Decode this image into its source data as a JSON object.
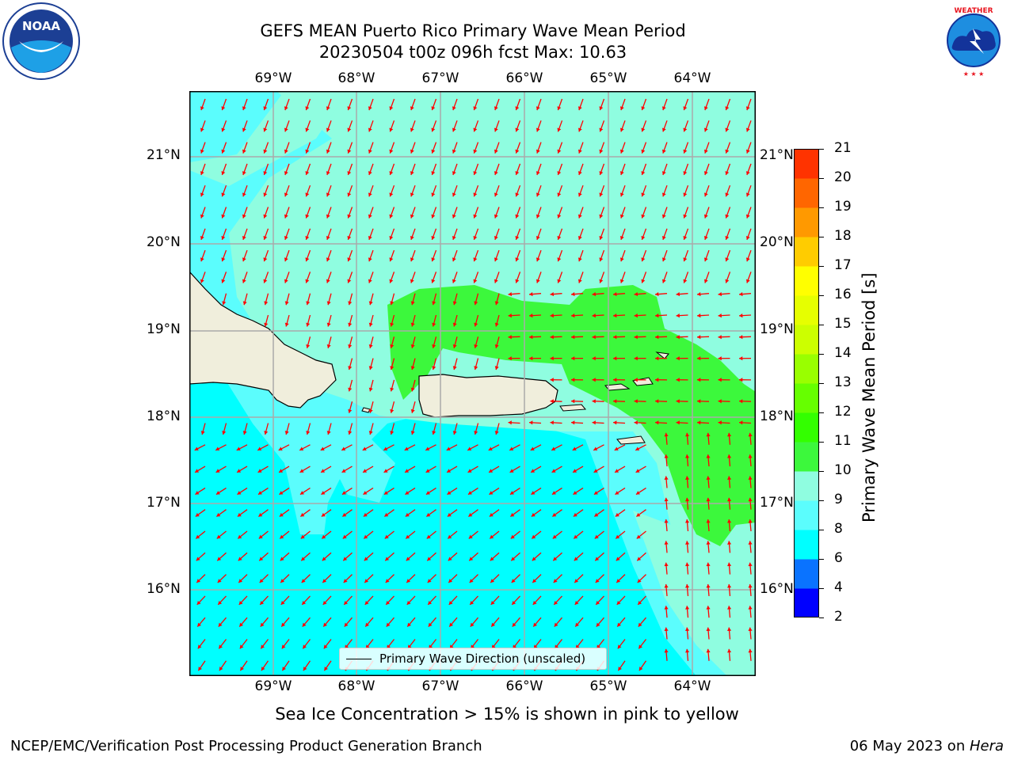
{
  "title_line1": "GEFS MEAN Puerto Rico Primary Wave Mean Period",
  "title_line2": "20230504 t00z 096h fcst   Max: 10.63",
  "longitude_labels": [
    "69°W",
    "68°W",
    "67°W",
    "66°W",
    "65°W",
    "64°W"
  ],
  "latitude_labels_left": [
    "21°N",
    "20°N",
    "19°N",
    "18°N",
    "17°N",
    "16°N"
  ],
  "latitude_labels_right": [
    "21°N",
    "20°N",
    "19°N",
    "18°N",
    "17°N",
    "16°N"
  ],
  "legend_label": "Primary Wave Direction (unscaled)",
  "colorbar": {
    "label": "Primary Wave Mean Period [s]",
    "ticks": [
      "2",
      "4",
      "6",
      "8",
      "9",
      "10",
      "11",
      "12",
      "13",
      "14",
      "15",
      "16",
      "17",
      "18",
      "19",
      "20",
      "21"
    ],
    "colors": [
      "#0000ff",
      "#0a73ff",
      "#00ffff",
      "#5bfdfd",
      "#8ffde0",
      "#3cf83c",
      "#33ff00",
      "#66ff00",
      "#99ff00",
      "#ccff00",
      "#e6ff00",
      "#ffff00",
      "#ffcc00",
      "#ff9900",
      "#ff6600",
      "#ff3300",
      "#ff0000"
    ]
  },
  "note": "Sea Ice Concentration > 15% is shown in pink to yellow",
  "footer_left": "NCEP/EMC/Verification Post Processing Product Generation Branch",
  "footer_right_text": "06 May 2023 on ",
  "footer_right_machine": "Hera",
  "logos": {
    "left": "NOAA",
    "right": "NATIONAL WEATHER SERVICE"
  },
  "arrow_color": "#ff0000",
  "map_colors": {
    "period_6_8": "#00ffff",
    "period_8_9": "#5bfdfd",
    "period_9_10": "#8ffde0",
    "period_10_11": "#3cf83c",
    "land": "#f0eedc"
  }
}
